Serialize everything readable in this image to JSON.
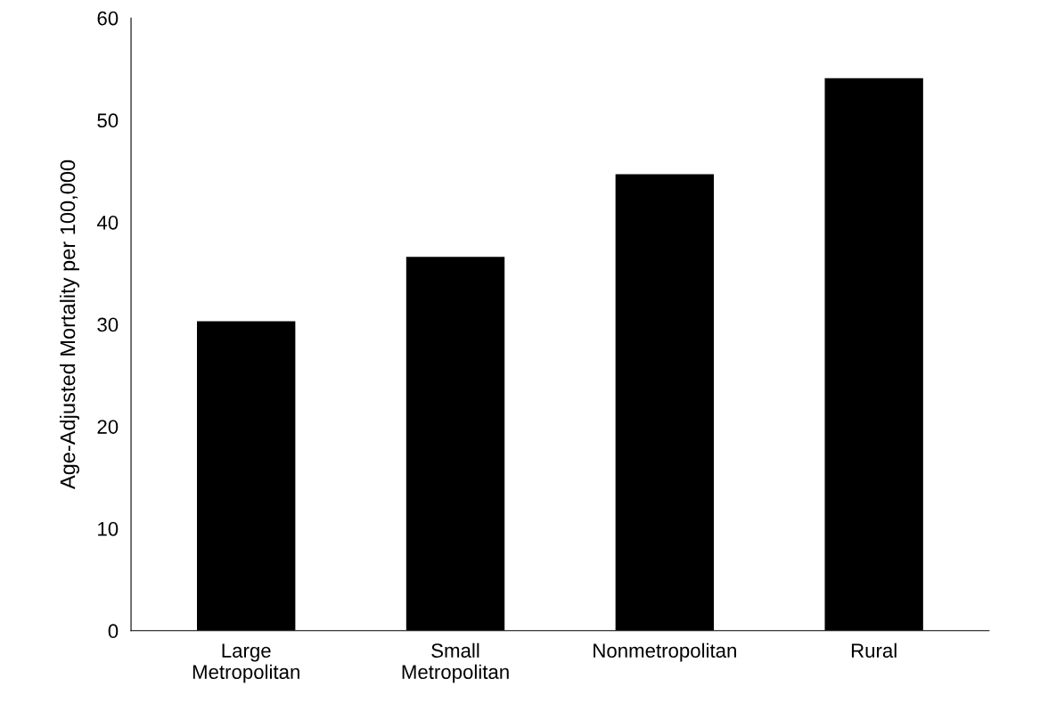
{
  "chart_data": {
    "type": "bar",
    "ylabel": "Age-Adjusted Mortality per 100,000",
    "categories": [
      "Large\nMetropolitan",
      "Small\nMetropolitan",
      "Nonmetropolitan",
      "Rural"
    ],
    "values": [
      30.3,
      36.6,
      44.7,
      54.1
    ],
    "color": "#000000",
    "ylim": [
      0,
      60
    ],
    "yticks": [
      0,
      10,
      20,
      30,
      40,
      50,
      60
    ],
    "grid": false,
    "legend": false
  }
}
